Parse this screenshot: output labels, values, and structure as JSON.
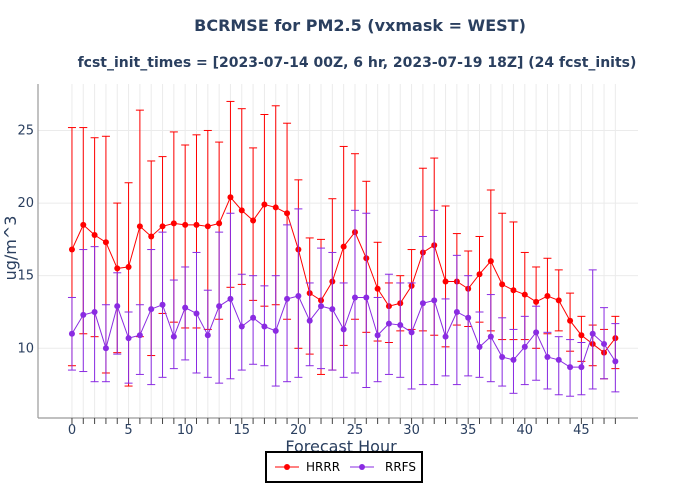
{
  "chart_data": {
    "type": "line",
    "title": "BCRMSE for PM2.5 (vxmask = WEST)",
    "subtitle": "fcst_init_times = [2023-07-14 00Z, 6 hr, 2023-07-19 18Z] (24 fcst_inits)",
    "xlabel": "Forecast Hour",
    "ylabel": "ug/m^3",
    "xlim": [
      -3,
      50
    ],
    "ylim": [
      5.2,
      28.2
    ],
    "xticks": [
      0,
      5,
      10,
      15,
      20,
      25,
      30,
      35,
      40,
      45
    ],
    "yticks": [
      10,
      15,
      20,
      25
    ],
    "x": [
      0,
      1,
      2,
      3,
      4,
      5,
      6,
      7,
      8,
      9,
      10,
      11,
      12,
      13,
      14,
      15,
      16,
      17,
      18,
      19,
      20,
      21,
      22,
      23,
      24,
      25,
      26,
      27,
      28,
      29,
      30,
      31,
      32,
      33,
      34,
      35,
      36,
      37,
      38,
      39,
      40,
      41,
      42,
      43,
      44,
      45,
      46,
      47,
      48
    ],
    "legend_position": "bottom-center",
    "series": [
      {
        "name": "HRRR",
        "color": "#ff0000",
        "values": [
          16.8,
          18.5,
          17.8,
          17.3,
          15.5,
          15.6,
          18.4,
          17.7,
          18.4,
          18.6,
          18.5,
          18.5,
          18.4,
          18.6,
          20.4,
          19.5,
          18.8,
          19.9,
          19.7,
          19.3,
          16.8,
          13.8,
          13.3,
          14.6,
          17.0,
          18.0,
          16.2,
          14.1,
          12.9,
          13.1,
          14.3,
          16.6,
          17.1,
          14.6,
          14.6,
          14.1,
          15.1,
          16.0,
          14.4,
          14.0,
          13.7,
          13.2,
          13.6,
          13.3,
          11.9,
          10.9,
          10.3,
          9.7,
          10.7
        ],
        "upper": [
          25.2,
          25.2,
          24.5,
          24.6,
          20.0,
          21.4,
          26.4,
          22.9,
          23.2,
          24.9,
          24.0,
          24.7,
          25.0,
          24.2,
          27.0,
          26.5,
          23.8,
          26.1,
          26.7,
          25.5,
          21.6,
          17.6,
          17.5,
          20.3,
          23.9,
          23.4,
          21.5,
          17.3,
          14.5,
          15.0,
          16.8,
          22.4,
          23.1,
          19.8,
          17.9,
          16.7,
          17.7,
          20.9,
          19.3,
          18.7,
          16.6,
          15.6,
          16.2,
          15.4,
          13.8,
          12.2,
          11.6,
          11.3,
          12.2
        ],
        "lower": [
          8.8,
          11.0,
          10.8,
          8.3,
          9.7,
          7.4,
          10.8,
          9.5,
          12.4,
          11.8,
          11.4,
          11.4,
          11.3,
          12.0,
          14.2,
          14.4,
          13.3,
          12.9,
          13.0,
          12.0,
          10.0,
          9.6,
          8.2,
          8.5,
          10.2,
          12.0,
          11.1,
          10.5,
          10.4,
          11.2,
          11.3,
          11.2,
          10.9,
          10.1,
          11.6,
          11.5,
          11.8,
          11.2,
          10.6,
          10.6,
          10.6,
          10.0,
          11.0,
          11.2,
          9.8,
          9.1,
          8.8,
          7.9,
          8.6
        ]
      },
      {
        "name": "RRFS",
        "color": "#8a2be2",
        "values": [
          11.0,
          12.3,
          12.5,
          10.0,
          12.9,
          10.7,
          10.9,
          12.7,
          13.0,
          10.8,
          12.8,
          12.4,
          10.9,
          12.9,
          13.4,
          11.5,
          12.1,
          11.5,
          11.2,
          13.4,
          13.6,
          11.9,
          12.9,
          12.7,
          11.3,
          13.5,
          13.5,
          10.9,
          11.7,
          11.6,
          11.1,
          13.1,
          13.3,
          10.8,
          12.5,
          12.1,
          10.1,
          10.8,
          9.4,
          9.2,
          10.1,
          11.1,
          9.4,
          9.2,
          8.7,
          8.7,
          11.0,
          10.3,
          9.1
        ],
        "upper": [
          13.5,
          16.8,
          17.0,
          13.0,
          15.2,
          12.5,
          13.0,
          16.8,
          18.0,
          14.7,
          15.6,
          16.6,
          14.0,
          18.0,
          19.3,
          15.1,
          15.0,
          14.3,
          15.0,
          18.5,
          19.6,
          14.5,
          16.9,
          16.6,
          14.5,
          19.5,
          19.3,
          13.5,
          15.1,
          14.5,
          14.5,
          17.7,
          19.5,
          13.4,
          16.4,
          15.0,
          12.5,
          13.7,
          12.1,
          11.3,
          12.2,
          12.9,
          11.1,
          10.8,
          10.6,
          10.4,
          15.4,
          12.8,
          11.7
        ],
        "lower": [
          8.5,
          8.4,
          7.7,
          7.7,
          9.6,
          7.6,
          8.2,
          7.5,
          8.0,
          8.6,
          9.2,
          8.3,
          8.0,
          7.6,
          7.9,
          8.5,
          8.9,
          8.8,
          7.4,
          7.7,
          8.0,
          8.8,
          8.6,
          8.5,
          8.0,
          8.3,
          7.3,
          7.7,
          8.2,
          8.0,
          7.2,
          7.5,
          7.5,
          8.1,
          7.5,
          8.1,
          8.0,
          7.7,
          7.4,
          6.9,
          7.5,
          7.8,
          7.2,
          6.8,
          6.7,
          6.8,
          7.2,
          7.9,
          7.0
        ]
      }
    ]
  }
}
